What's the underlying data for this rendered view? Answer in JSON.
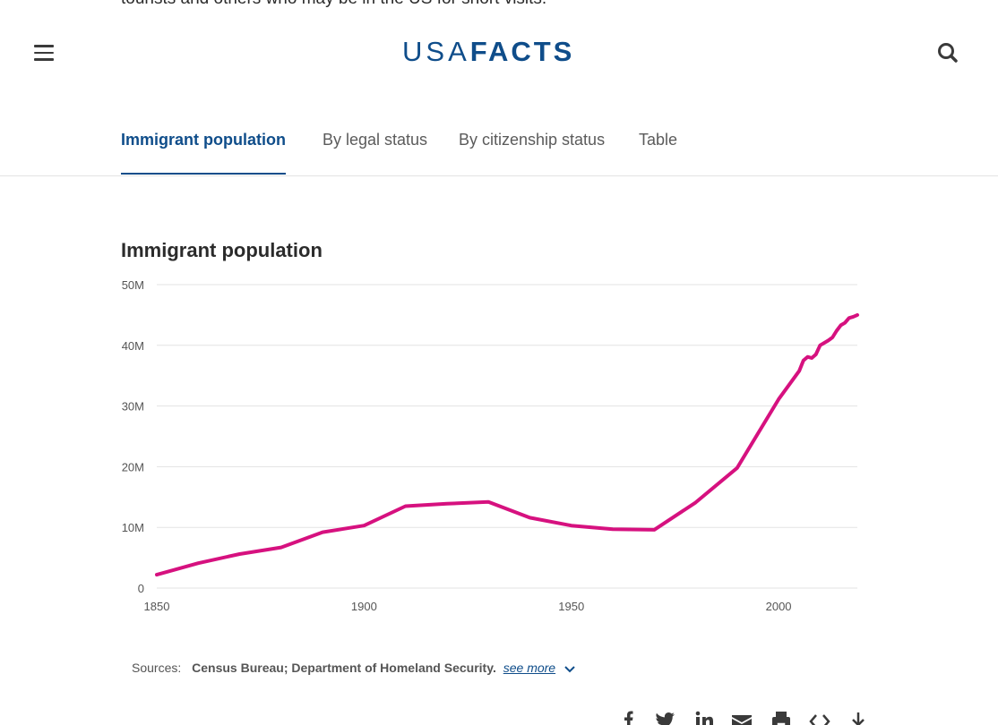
{
  "intro_cut_text": "tourists and others who may be in the US for short visits.",
  "header": {
    "logo_light": "USA",
    "logo_bold": "FACTS",
    "brand_color": "#0f4d8a"
  },
  "tabs": [
    {
      "label": "Immigrant population",
      "active": true
    },
    {
      "label": "By legal status",
      "active": false
    },
    {
      "label": "By citizenship status",
      "active": false
    },
    {
      "label": "Table",
      "active": false
    }
  ],
  "chart_data": {
    "type": "line",
    "title": "Immigrant population",
    "xlabel": "",
    "ylabel": "",
    "xlim": [
      1850,
      2019
    ],
    "ylim": [
      0,
      50000000
    ],
    "x_ticks": [
      1850,
      1900,
      1950,
      2000
    ],
    "x_tick_labels": [
      "1850",
      "1900",
      "1950",
      "2000"
    ],
    "y_ticks": [
      0,
      10000000,
      20000000,
      30000000,
      40000000,
      50000000
    ],
    "y_tick_labels": [
      "0",
      "10M",
      "20M",
      "30M",
      "40M",
      "50M"
    ],
    "grid": true,
    "line_color": "#d6117f",
    "series": [
      {
        "x": [
          1850,
          1860,
          1870,
          1880,
          1890,
          1900,
          1910,
          1920,
          1930,
          1940,
          1950,
          1960,
          1970,
          1980,
          1990,
          2000,
          2005,
          2006,
          2007,
          2008,
          2009,
          2010,
          2011,
          2012,
          2013,
          2014,
          2015,
          2016,
          2017,
          2018,
          2019
        ],
        "y": [
          2200000,
          4100000,
          5600000,
          6700000,
          9200000,
          10300000,
          13500000,
          13900000,
          14200000,
          11600000,
          10300000,
          9700000,
          9600000,
          14100000,
          19800000,
          31100000,
          35800000,
          37500000,
          38100000,
          37900000,
          38500000,
          40000000,
          40400000,
          40800000,
          41300000,
          42400000,
          43300000,
          43700000,
          44500000,
          44700000,
          45000000
        ]
      }
    ]
  },
  "sources": {
    "label": "Sources:",
    "value": "Census Bureau; Department of Homeland Security.",
    "more_label": "see more"
  },
  "share_icons": [
    "facebook-icon",
    "twitter-icon",
    "linkedin-icon",
    "email-icon",
    "print-icon",
    "embed-icon",
    "download-icon"
  ]
}
